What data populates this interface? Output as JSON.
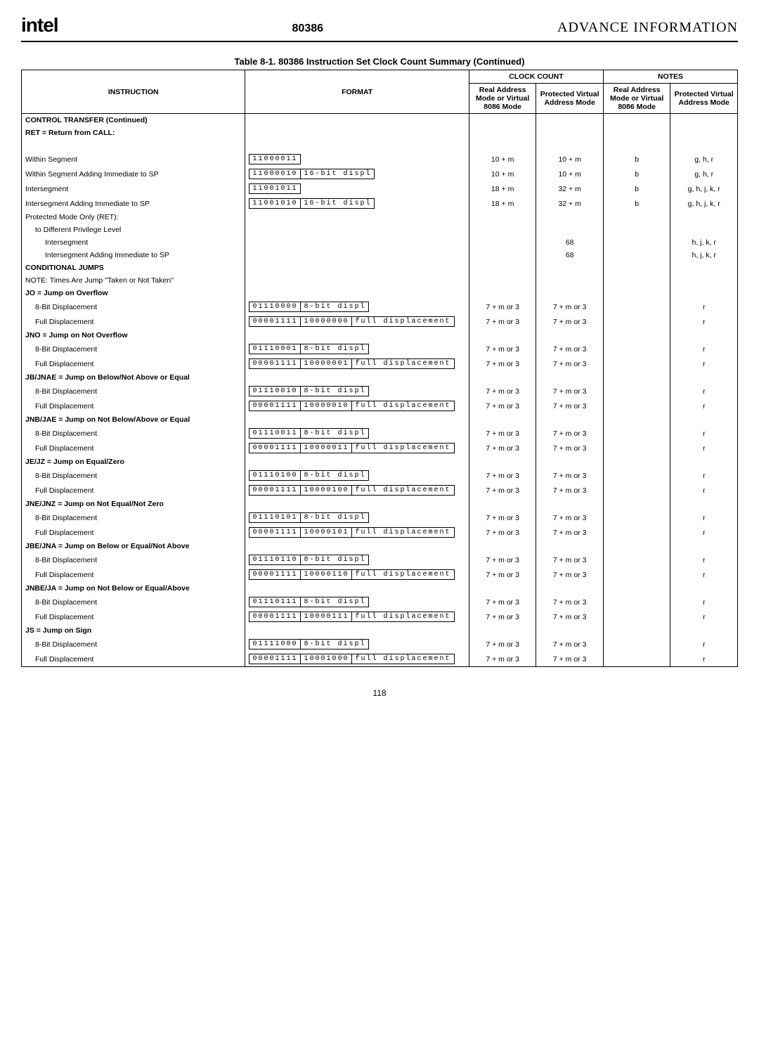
{
  "header": {
    "logo": "intel",
    "chip": "80386",
    "advance": "ADVANCE INFORMATION"
  },
  "table": {
    "title": "Table 8-1. 80386 Instruction Set Clock Count Summary  (Continued)",
    "head": {
      "instruction": "INSTRUCTION",
      "format": "FORMAT",
      "clock_count": "CLOCK COUNT",
      "notes": "NOTES",
      "real_mode": "Real Address Mode or Virtual 8086 Mode",
      "prot_mode": "Protected Virtual Address Mode"
    },
    "rows": [
      {
        "type": "section",
        "label": "CONTROL TRANSFER (Continued)"
      },
      {
        "type": "section",
        "label": "RET = Return from CALL:"
      },
      {
        "type": "spacer"
      },
      {
        "type": "row",
        "label": "Within Segment",
        "op": [
          "11000011"
        ],
        "c1": "10 + m",
        "c2": "10 + m",
        "n1": "b",
        "n2": "g, h, r"
      },
      {
        "type": "row",
        "label": "Within Segment Adding Immediate to SP",
        "op": [
          "11000010",
          "16-bit displ"
        ],
        "c1": "10 + m",
        "c2": "10 + m",
        "n1": "b",
        "n2": "g, h, r"
      },
      {
        "type": "row",
        "label": "Intersegment",
        "op": [
          "11001011"
        ],
        "c1": "18 + m",
        "c2": "32 + m",
        "n1": "b",
        "n2": "g, h, j, k, r"
      },
      {
        "type": "row",
        "label": "Intersegment Adding Immediate to SP",
        "op": [
          "11001010",
          "16-bit displ"
        ],
        "c1": "18 + m",
        "c2": "32 + m",
        "n1": "b",
        "n2": "g, h, j, k, r"
      },
      {
        "type": "text",
        "label": "Protected Mode Only (RET):"
      },
      {
        "type": "text",
        "label": "to Different Privilege Level",
        "cls": "sub"
      },
      {
        "type": "row",
        "label": "Intersegment",
        "cls": "sub2",
        "c1": "",
        "c2": "68",
        "n1": "",
        "n2": "h, j, k, r"
      },
      {
        "type": "row",
        "label": "Intersegment Adding Immediate to SP",
        "cls": "sub2",
        "c1": "",
        "c2": "68",
        "n1": "",
        "n2": "h, j, k, r"
      },
      {
        "type": "section",
        "label": "CONDITIONAL JUMPS"
      },
      {
        "type": "text",
        "label": "NOTE: Times Are Jump \"Taken or Not Taken\""
      },
      {
        "type": "section",
        "label": "JO = Jump on Overflow"
      },
      {
        "type": "row",
        "label": "8-Bit Displacement",
        "cls": "sub",
        "op": [
          "01110000",
          "8-bit displ"
        ],
        "c1": "7 + m or 3",
        "c2": "7 + m or 3",
        "n1": "",
        "n2": "r"
      },
      {
        "type": "row",
        "label": "Full Displacement",
        "cls": "sub",
        "op": [
          "00001111",
          "10000000",
          "full displacement"
        ],
        "c1": "7 + m or 3",
        "c2": "7 + m or 3",
        "n1": "",
        "n2": "r"
      },
      {
        "type": "section",
        "label": "JNO = Jump on Not Overflow"
      },
      {
        "type": "row",
        "label": "8-Bit Displacement",
        "cls": "sub",
        "op": [
          "01110001",
          "8-bit displ"
        ],
        "c1": "7 + m or 3",
        "c2": "7 + m or 3",
        "n1": "",
        "n2": "r"
      },
      {
        "type": "row",
        "label": "Full Displacement",
        "cls": "sub",
        "op": [
          "00001111",
          "10000001",
          "full displacement"
        ],
        "c1": "7 + m or 3",
        "c2": "7 + m or 3",
        "n1": "",
        "n2": "r"
      },
      {
        "type": "section",
        "label": "JB/JNAE = Jump on Below/Not Above or Equal"
      },
      {
        "type": "row",
        "label": "8-Bit Displacement",
        "cls": "sub",
        "op": [
          "01110010",
          "8-bit displ"
        ],
        "c1": "7 + m or 3",
        "c2": "7 + m or 3",
        "n1": "",
        "n2": "r"
      },
      {
        "type": "row",
        "label": "Full Displacement",
        "cls": "sub",
        "op": [
          "00001111",
          "10000010",
          "full displacement"
        ],
        "c1": "7 + m or 3",
        "c2": "7 + m or 3",
        "n1": "",
        "n2": "r"
      },
      {
        "type": "section",
        "label": "JNB/JAE = Jump on Not Below/Above or Equal"
      },
      {
        "type": "row",
        "label": "8-Bit Displacement",
        "cls": "sub",
        "op": [
          "01110011",
          "8-bit displ"
        ],
        "c1": "7 + m or 3",
        "c2": "7 + m or 3",
        "n1": "",
        "n2": "r"
      },
      {
        "type": "row",
        "label": "Full Displacement",
        "cls": "sub",
        "op": [
          "00001111",
          "10000011",
          "full displacement"
        ],
        "c1": "7 + m or 3",
        "c2": "7 + m or 3",
        "n1": "",
        "n2": "r"
      },
      {
        "type": "section",
        "label": "JE/JZ = Jump on Equal/Zero"
      },
      {
        "type": "row",
        "label": "8-Bit Displacement",
        "cls": "sub",
        "op": [
          "01110100",
          "8-bit displ"
        ],
        "c1": "7 + m or 3",
        "c2": "7 + m or 3",
        "n1": "",
        "n2": "r"
      },
      {
        "type": "row",
        "label": "Full Displacement",
        "cls": "sub",
        "op": [
          "00001111",
          "10000100",
          "full displacement"
        ],
        "c1": "7 + m or 3",
        "c2": "7 + m or 3",
        "n1": "",
        "n2": "r"
      },
      {
        "type": "section",
        "label": "JNE/JNZ   = Jump on Not Equal/Not Zero"
      },
      {
        "type": "row",
        "label": "8-Bit Displacement",
        "cls": "sub",
        "op": [
          "01110101",
          "8-bit displ"
        ],
        "c1": "7 + m or 3",
        "c2": "7 + m or 3",
        "n1": "",
        "n2": "r"
      },
      {
        "type": "row",
        "label": "Full Displacement",
        "cls": "sub",
        "op": [
          "00001111",
          "10000101",
          "full displacement"
        ],
        "c1": "7 + m or 3",
        "c2": "7 + m or 3",
        "n1": "",
        "n2": "r"
      },
      {
        "type": "section",
        "label": "JBE/JNA   = Jump on Below or Equal/Not Above"
      },
      {
        "type": "row",
        "label": "8-Bit Displacement",
        "cls": "sub",
        "op": [
          "01110110",
          "8-bit displ"
        ],
        "c1": "7 + m or 3",
        "c2": "7 + m or 3",
        "n1": "",
        "n2": "r"
      },
      {
        "type": "row",
        "label": "Full Displacement",
        "cls": "sub",
        "op": [
          "00001111",
          "10000110",
          "full displacement"
        ],
        "c1": "7 + m or 3",
        "c2": "7 + m or 3",
        "n1": "",
        "n2": "r"
      },
      {
        "type": "section",
        "label": "JNBE/JA = Jump on Not Below or Equal/Above"
      },
      {
        "type": "row",
        "label": "8-Bit Displacement",
        "cls": "sub",
        "op": [
          "01110111",
          "8-bit displ"
        ],
        "c1": "7 + m or 3",
        "c2": "7 + m or 3",
        "n1": "",
        "n2": "r"
      },
      {
        "type": "row",
        "label": "Full Displacement",
        "cls": "sub",
        "op": [
          "00001111",
          "10000111",
          "full displacement"
        ],
        "c1": "7 + m or 3",
        "c2": "7 + m or 3",
        "n1": "",
        "n2": "r"
      },
      {
        "type": "section",
        "label": "JS = Jump on Sign"
      },
      {
        "type": "row",
        "label": "8-Bit Displacement",
        "cls": "sub",
        "op": [
          "01111000",
          "8-bit displ"
        ],
        "c1": "7 + m or 3",
        "c2": "7 + m or 3",
        "n1": "",
        "n2": "r"
      },
      {
        "type": "row",
        "label": "Full Displacement",
        "cls": "sub",
        "op": [
          "00001111",
          "10001000",
          "full displacement"
        ],
        "c1": "7 + m or 3",
        "c2": "7 + m or 3",
        "n1": "",
        "n2": "r"
      }
    ]
  },
  "page_num": "118"
}
